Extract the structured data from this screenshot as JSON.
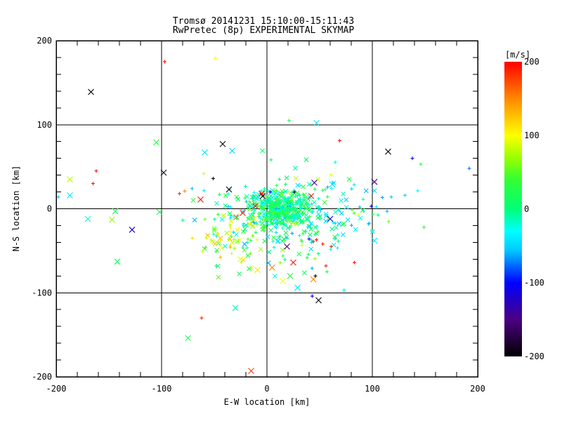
{
  "chart_data": {
    "type": "scatter",
    "title_line1": "Tromsø 20141231 15:10:00-15:11:43",
    "title_line2": "RwPretec (8p) EXPERIMENTAL SKYMAP",
    "xlabel": "E-W location [km]",
    "ylabel": "N-S location [km]",
    "xlim": [
      -200,
      200
    ],
    "ylim": [
      -200,
      200
    ],
    "xticks": [
      -200,
      -100,
      0,
      100,
      200
    ],
    "yticks": [
      -200,
      -100,
      0,
      100,
      200
    ],
    "minor_tick_step": 20,
    "grid_x": [
      -100,
      0,
      100
    ],
    "grid_y": [
      -100,
      0,
      100
    ],
    "grid": true,
    "legend_position": "right-colorbar",
    "colorbar": {
      "label": "[m/s]",
      "ticks": [
        200,
        100,
        0,
        -100,
        -200
      ],
      "range": [
        -200,
        200
      ],
      "stops": [
        [
          -200,
          "#000000"
        ],
        [
          -150,
          "#4b0082"
        ],
        [
          -100,
          "#0000ff"
        ],
        [
          -55,
          "#00ccff"
        ],
        [
          -30,
          "#00ffff"
        ],
        [
          0,
          "#00ff77"
        ],
        [
          40,
          "#33ff33"
        ],
        [
          70,
          "#99ff00"
        ],
        [
          100,
          "#ffff00"
        ],
        [
          150,
          "#ff8800"
        ],
        [
          200,
          "#ff0000"
        ]
      ]
    },
    "points": [
      [
        -167,
        139,
        -195,
        "x"
      ],
      [
        -97,
        175,
        195,
        "+"
      ],
      [
        -49,
        179,
        100,
        "+"
      ],
      [
        21,
        105,
        25,
        "+"
      ],
      [
        47,
        102,
        -40,
        "x"
      ],
      [
        69,
        81,
        195,
        "+"
      ],
      [
        115,
        68,
        -195,
        "x"
      ],
      [
        138,
        60,
        -105,
        "+"
      ],
      [
        146,
        53,
        30,
        "+"
      ],
      [
        192,
        48,
        -75,
        "+"
      ],
      [
        102,
        32,
        -140,
        "x"
      ],
      [
        -105,
        79,
        30,
        "x"
      ],
      [
        -42,
        77,
        -195,
        "x"
      ],
      [
        -59,
        67,
        -45,
        "x"
      ],
      [
        -33,
        69,
        -50,
        "x"
      ],
      [
        -98,
        43,
        -190,
        "x"
      ],
      [
        -162,
        45,
        195,
        "+"
      ],
      [
        -187,
        35,
        80,
        "x"
      ],
      [
        -165,
        30,
        190,
        "+"
      ],
      [
        -187,
        16,
        -40,
        "x"
      ],
      [
        -198,
        14,
        -55,
        "+"
      ],
      [
        -144,
        -3,
        20,
        "x"
      ],
      [
        -170,
        -12,
        -20,
        "x"
      ],
      [
        -147,
        -13,
        70,
        "x"
      ],
      [
        -128,
        -25,
        -110,
        "x"
      ],
      [
        -142,
        -63,
        15,
        "x"
      ],
      [
        -102,
        -4,
        30,
        "x"
      ],
      [
        -51,
        36,
        -190,
        "+"
      ],
      [
        -71,
        24,
        -60,
        "+"
      ],
      [
        -83,
        18,
        185,
        "+"
      ],
      [
        -78,
        21,
        150,
        "+"
      ],
      [
        -63,
        11,
        195,
        "x"
      ],
      [
        -36,
        23,
        -195,
        "x"
      ],
      [
        -45,
        17,
        25,
        "+"
      ],
      [
        -60,
        42,
        90,
        "+"
      ],
      [
        99,
        3,
        -95,
        "+"
      ],
      [
        114,
        -3,
        -60,
        "+"
      ],
      [
        102,
        -38,
        -45,
        "x"
      ],
      [
        149,
        -22,
        35,
        "+"
      ],
      [
        118,
        14,
        -55,
        "+"
      ],
      [
        131,
        16,
        -50,
        "+"
      ],
      [
        62,
        29,
        -45,
        "x"
      ],
      [
        -30,
        -118,
        -15,
        "x"
      ],
      [
        -62,
        -130,
        185,
        "+"
      ],
      [
        -75,
        -154,
        25,
        "x"
      ],
      [
        -15,
        -193,
        180,
        "x"
      ],
      [
        49,
        -109,
        -195,
        "x"
      ],
      [
        43,
        -104,
        -110,
        "+"
      ],
      [
        25,
        -64,
        195,
        "x"
      ],
      [
        44,
        -84,
        150,
        "x"
      ],
      [
        46,
        -80,
        -190,
        "+"
      ],
      [
        56,
        -68,
        190,
        "+"
      ],
      [
        83,
        -64,
        195,
        "+"
      ],
      [
        15,
        -86,
        95,
        "x"
      ],
      [
        5,
        -70,
        150,
        "x"
      ],
      [
        22,
        -80,
        30,
        "x"
      ],
      [
        29,
        -94,
        -40,
        "x"
      ],
      [
        -9,
        -73,
        110,
        "x"
      ],
      [
        -25,
        -60,
        95,
        "x"
      ],
      [
        -5,
        18,
        195,
        "x"
      ],
      [
        -4,
        15,
        -195,
        "x"
      ],
      [
        -29,
        -10,
        160,
        "x"
      ],
      [
        -12,
        -12,
        105,
        "x"
      ],
      [
        -23,
        -5,
        195,
        "x"
      ],
      [
        42,
        15,
        190,
        "x"
      ],
      [
        45,
        31,
        -140,
        "x"
      ],
      [
        40,
        -36,
        -110,
        "+"
      ],
      [
        19,
        -45,
        -160,
        "x"
      ],
      [
        44,
        -39,
        190,
        "+"
      ],
      [
        47,
        -37,
        195,
        "+"
      ],
      [
        53,
        -42,
        190,
        "+"
      ],
      [
        61,
        -45,
        185,
        "+"
      ],
      [
        -11,
        3,
        190,
        "x"
      ],
      [
        26,
        20,
        -195,
        "+"
      ],
      [
        21,
        20,
        100,
        "+"
      ],
      [
        3,
        20,
        -105,
        "+"
      ],
      [
        60,
        -12,
        -100,
        "x"
      ]
    ],
    "clusters": [
      {
        "count": 300,
        "cx": 13,
        "cy": 1,
        "sx": 12,
        "sy": 9,
        "vmin": -35,
        "vmax": 45,
        "seed": 11
      },
      {
        "count": 220,
        "cx": 12,
        "cy": -8,
        "sx": 28,
        "sy": 20,
        "vmin": -55,
        "vmax": 55,
        "seed": 22
      },
      {
        "count": 110,
        "cx": 15,
        "cy": -15,
        "sx": 46,
        "sy": 32,
        "vmin": -70,
        "vmax": 90,
        "seed": 33
      },
      {
        "count": 45,
        "cx": -40,
        "cy": -38,
        "sx": 16,
        "sy": 15,
        "vmin": 35,
        "vmax": 135,
        "seed": 44
      },
      {
        "count": 35,
        "cx": 72,
        "cy": 2,
        "sx": 18,
        "sy": 22,
        "vmin": -65,
        "vmax": -5,
        "seed": 55
      }
    ]
  }
}
